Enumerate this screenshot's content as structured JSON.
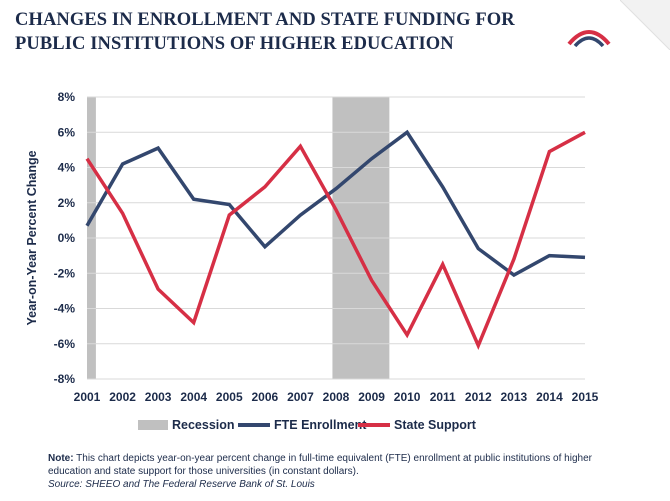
{
  "header": {
    "title_line1": "CHANGES IN ENROLLMENT AND STATE FUNDING FOR",
    "title_line2": "PUBLIC INSTITUTIONS OF HIGHER EDUCATION"
  },
  "colors": {
    "enrollment": "#33476e",
    "state_support": "#d62f45",
    "recession": "#c0c0c0",
    "text": "#1c2b4a"
  },
  "chart_data": {
    "type": "line",
    "title": "",
    "xlabel": "",
    "ylabel": "Year-on-Year Percent Change",
    "x": [
      "2001",
      "2002",
      "2003",
      "2004",
      "2005",
      "2006",
      "2007",
      "2008",
      "2009",
      "2010",
      "2011",
      "2012",
      "2013",
      "2014",
      "2015"
    ],
    "ylim": [
      -8,
      8
    ],
    "yticks": [
      "-8%",
      "-6%",
      "-4%",
      "-2%",
      "0%",
      "2%",
      "4%",
      "6%",
      "8%"
    ],
    "grid": true,
    "legend_position": "bottom",
    "series": [
      {
        "name": "FTE Enrollment",
        "color": "#33476e",
        "values": [
          0.7,
          4.2,
          5.1,
          2.2,
          1.9,
          -0.5,
          1.3,
          2.8,
          4.5,
          6.0,
          2.9,
          -0.6,
          -2.1,
          -1.0,
          -1.1
        ]
      },
      {
        "name": "State Support",
        "color": "#d62f45",
        "values": [
          4.5,
          1.4,
          -2.9,
          -4.8,
          1.3,
          2.9,
          5.2,
          1.6,
          -2.4,
          -5.5,
          -1.5,
          -6.1,
          -1.2,
          4.9,
          6.0
        ]
      }
    ],
    "recessions": [
      {
        "start": "2001",
        "end": "2001.25"
      },
      {
        "start": "2007.9",
        "end": "2009.5"
      }
    ],
    "legend": [
      "Recession",
      "FTE Enrollment",
      "State Support"
    ]
  },
  "note": {
    "label": "Note:",
    "text": " This chart depicts year-on-year percent change in full-time equivalent (FTE) enrollment at public institutions of higher education and state support for those universities (in constant dollars).",
    "source": "Source: SHEEO and The Federal Reserve Bank of St. Louis"
  }
}
